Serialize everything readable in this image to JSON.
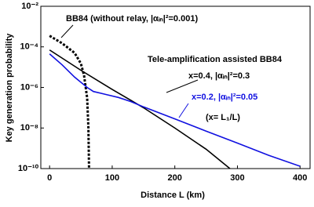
{
  "chart_data": {
    "type": "line",
    "xlabel": "Distance  L (km)",
    "ylabel": "Key generation probability",
    "xlim": [
      -14,
      416
    ],
    "xticks": [
      0,
      100,
      200,
      300,
      400
    ],
    "ylim": [
      1e-10,
      0.01
    ],
    "yscale": "log",
    "yticks": [
      {
        "value": 0.01,
        "label": "10⁻²"
      },
      {
        "value": 0.0001,
        "label": "10⁻⁴"
      },
      {
        "value": 1e-06,
        "label": "10⁻⁶"
      },
      {
        "value": 1e-08,
        "label": "10⁻⁸"
      },
      {
        "value": 1e-10,
        "label": "10⁻¹⁰"
      }
    ],
    "grid": false,
    "series": [
      {
        "name": "BB84  (without relay, |αᵢₙ|²=0.001)",
        "color": "#000000",
        "dash": "dotted",
        "x": [
          0,
          20,
          40,
          50,
          55,
          60,
          62,
          63
        ],
        "values": [
          0.00035,
          0.00015,
          5e-05,
          1.5e-05,
          4e-06,
          3e-07,
          1e-08,
          1e-10
        ]
      },
      {
        "name": "x=0.4, |αᵢₙ|²=0.3",
        "color": "#000000",
        "dash": "solid",
        "x": [
          0,
          50,
          100,
          150,
          200,
          250,
          288
        ],
        "values": [
          7e-05,
          7e-06,
          8e-07,
          1e-07,
          1e-08,
          9e-10,
          1e-10
        ]
      },
      {
        "name": "x=0.2, |αᵢₙ|²=0.05",
        "color": "#1010e0",
        "dash": "solid",
        "x": [
          0,
          20,
          40,
          60,
          70,
          90,
          110,
          130,
          150,
          200,
          250,
          300,
          350,
          400
        ],
        "values": [
          4.5e-05,
          1.3e-05,
          3.2e-06,
          1e-06,
          6.3e-07,
          4.5e-07,
          3.2e-07,
          2e-07,
          1.1e-07,
          2.8e-08,
          7e-09,
          1.8e-09,
          4.5e-10,
          1.3e-10
        ]
      }
    ],
    "annotations": [
      "Tele-amplification assisted BB84",
      "(x= L₁/L)"
    ]
  }
}
